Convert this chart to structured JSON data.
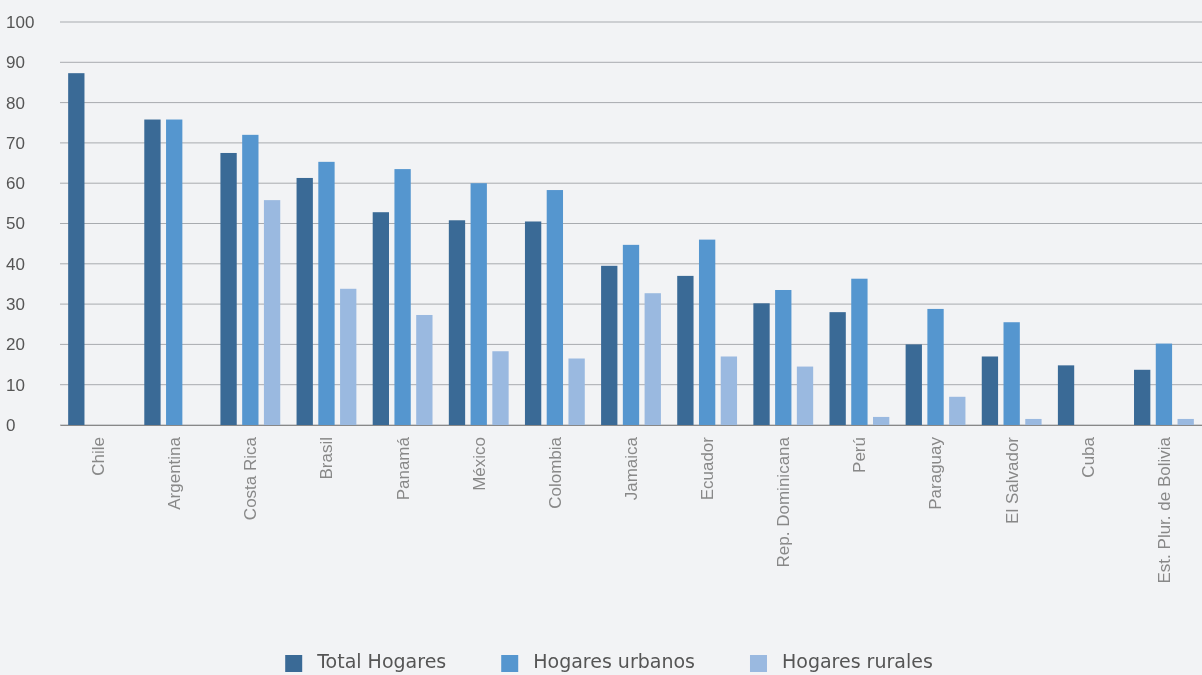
{
  "chart_data": {
    "type": "bar",
    "categories": [
      "Chile",
      "Argentina",
      "Costa Rica",
      "Brasil",
      "Panamá",
      "México",
      "Colombia",
      "Jamaica",
      "Ecuador",
      "Rep. Dominicana",
      "Perú",
      "Paraguay",
      "El Salvador",
      "Cuba",
      "Est. Plur. de Bolivia"
    ],
    "series": [
      {
        "name": "Total Hogares",
        "color": "#3a6a96",
        "values": [
          87.3,
          75.8,
          67.5,
          61.3,
          52.8,
          50.8,
          50.5,
          39.5,
          37,
          30.2,
          28,
          20,
          17,
          14.8,
          13.7
        ]
      },
      {
        "name": "Hogares urbanos",
        "color": "#5596cf",
        "values": [
          null,
          75.8,
          72,
          65.3,
          63.5,
          60,
          58.3,
          44.7,
          46,
          33.5,
          36.3,
          28.8,
          25.5,
          null,
          20.2
        ]
      },
      {
        "name": "Hogares rurales",
        "color": "#9ab9e0",
        "values": [
          null,
          null,
          55.8,
          33.8,
          27.3,
          18.3,
          16.5,
          32.7,
          17,
          14.5,
          2,
          7,
          1.5,
          null,
          1.5
        ]
      }
    ],
    "ylim": [
      0,
      100
    ],
    "yticks": [
      0,
      10,
      20,
      30,
      40,
      50,
      60,
      70,
      80,
      90,
      100
    ],
    "grid": "y",
    "legend": "bottom"
  }
}
